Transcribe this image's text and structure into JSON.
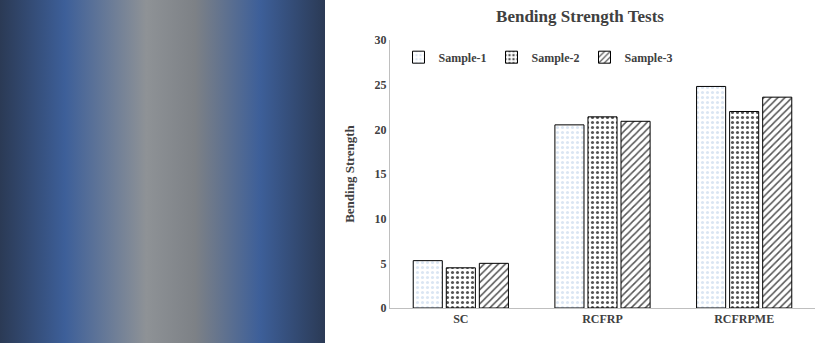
{
  "chart_data": {
    "type": "bar",
    "title": "Bending Strength Tests",
    "y_label": "Bending Strength",
    "categories": [
      "SC",
      "RCFRP",
      "RCFRPME"
    ],
    "series": [
      {
        "name": "Sample-1",
        "color": "#4f81bd",
        "marker": "dots",
        "values": [
          5.3,
          20.5,
          24.8
        ]
      },
      {
        "name": "Sample-2",
        "color": "#ffffff",
        "marker": "dots",
        "values": [
          4.5,
          21.4,
          22.0
        ]
      },
      {
        "name": "Sample-3",
        "color": "#ffffff",
        "marker": "hatch",
        "values": [
          5.0,
          20.9,
          23.6
        ]
      }
    ],
    "ylim": [
      0,
      30
    ],
    "yticks": [
      0,
      5,
      10,
      15,
      20,
      25,
      30
    ],
    "grid": false,
    "legend": "top left"
  }
}
